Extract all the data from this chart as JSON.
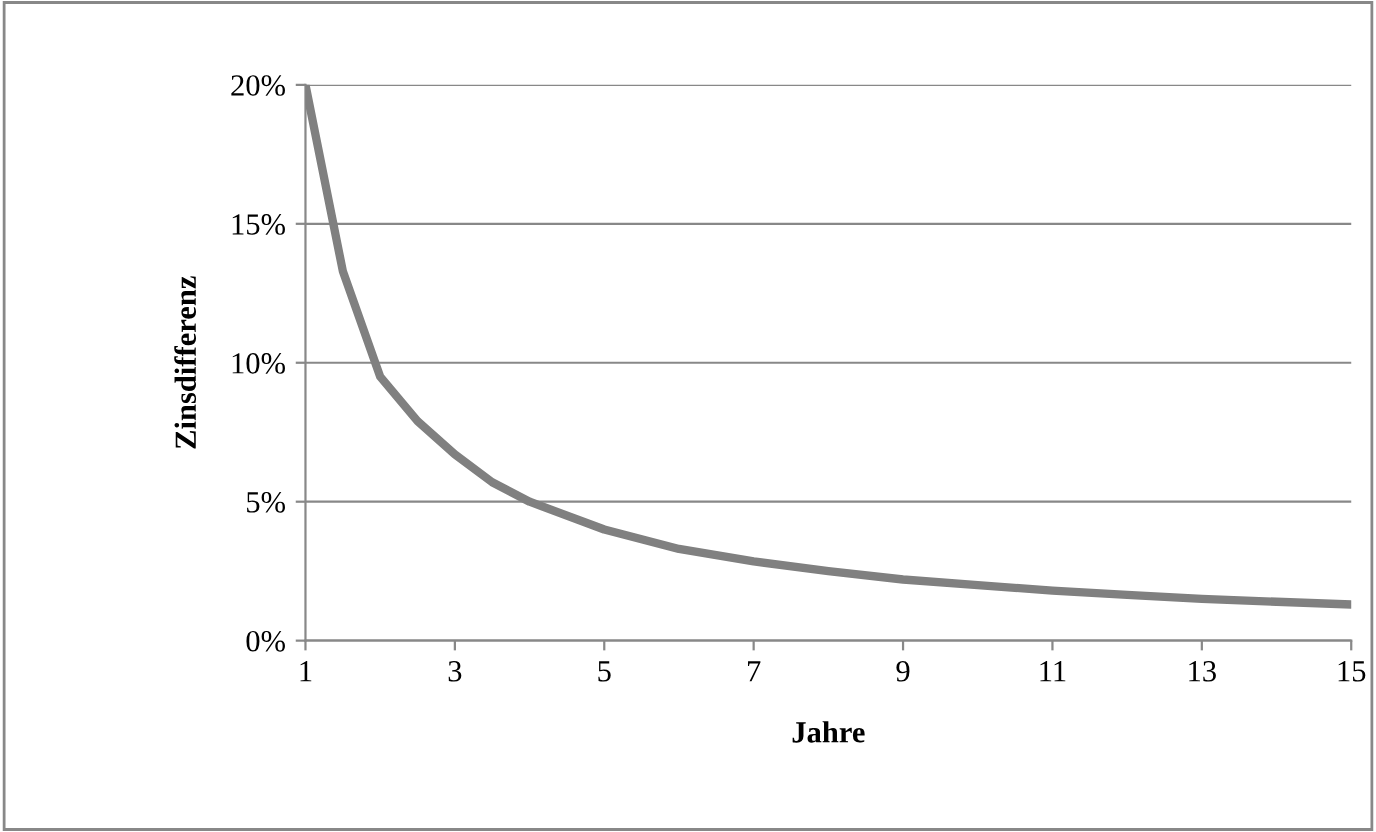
{
  "chart_data": {
    "type": "line",
    "xlabel": "Jahre",
    "ylabel": "Zinsdifferenz",
    "x": [
      1,
      1.5,
      2,
      2.5,
      3,
      3.5,
      4,
      5,
      6,
      7,
      8,
      9,
      10,
      11,
      12,
      13,
      14,
      15
    ],
    "series": [
      {
        "color": "#808080",
        "values": [
          20,
          13.3,
          9.5,
          7.9,
          6.7,
          5.7,
          5.0,
          4.0,
          3.3,
          2.85,
          2.5,
          2.2,
          2.0,
          1.8,
          1.65,
          1.5,
          1.4,
          1.3
        ]
      }
    ],
    "xlim": [
      1,
      15
    ],
    "xticks": [
      1,
      3,
      5,
      7,
      9,
      11,
      13,
      15
    ],
    "ylim": [
      0,
      20
    ],
    "yticks": [
      {
        "value": 0,
        "label": "0%"
      },
      {
        "value": 5,
        "label": "5%"
      },
      {
        "value": 10,
        "label": "10%"
      },
      {
        "value": 15,
        "label": "15%"
      },
      {
        "value": 20,
        "label": "20%"
      }
    ],
    "grid": "y",
    "marker": "none",
    "line_style": "solid",
    "legend": false
  }
}
